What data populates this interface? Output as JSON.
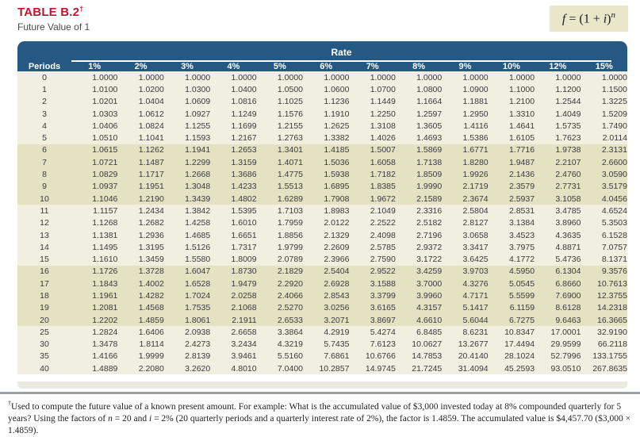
{
  "page": {
    "title": "TABLE B.2",
    "title_dagger": "†",
    "subtitle": "Future Value of 1",
    "formula": {
      "f": "f",
      "eq": " = (1 + ",
      "i": "i",
      "close": ")",
      "exp": "n"
    }
  },
  "colors": {
    "title_red": "#c2132e",
    "header_blue": "#255883",
    "band_light": "#f1efdf",
    "band_dark": "#e5e2c4",
    "formula_bg": "#e9e6c9"
  },
  "table": {
    "rate_label": "Rate",
    "periods_label": "Periods",
    "rate_columns": [
      "1%",
      "2%",
      "3%",
      "4%",
      "5%",
      "6%",
      "7%",
      "8%",
      "9%",
      "10%",
      "12%",
      "15%"
    ],
    "rows": [
      {
        "period": "0",
        "values": [
          "1.0000",
          "1.0000",
          "1.0000",
          "1.0000",
          "1.0000",
          "1.0000",
          "1.0000",
          "1.0000",
          "1.0000",
          "1.0000",
          "1.0000",
          "1.0000"
        ]
      },
      {
        "period": "1",
        "values": [
          "1.0100",
          "1.0200",
          "1.0300",
          "1.0400",
          "1.0500",
          "1.0600",
          "1.0700",
          "1.0800",
          "1.0900",
          "1.1000",
          "1.1200",
          "1.1500"
        ]
      },
      {
        "period": "2",
        "values": [
          "1.0201",
          "1.0404",
          "1.0609",
          "1.0816",
          "1.1025",
          "1.1236",
          "1.1449",
          "1.1664",
          "1.1881",
          "1.2100",
          "1.2544",
          "1.3225"
        ]
      },
      {
        "period": "3",
        "values": [
          "1.0303",
          "1.0612",
          "1.0927",
          "1.1249",
          "1.1576",
          "1.1910",
          "1.2250",
          "1.2597",
          "1.2950",
          "1.3310",
          "1.4049",
          "1.5209"
        ]
      },
      {
        "period": "4",
        "values": [
          "1.0406",
          "1.0824",
          "1.1255",
          "1.1699",
          "1.2155",
          "1.2625",
          "1.3108",
          "1.3605",
          "1.4116",
          "1.4641",
          "1.5735",
          "1.7490"
        ]
      },
      {
        "period": "5",
        "values": [
          "1.0510",
          "1.1041",
          "1.1593",
          "1.2167",
          "1.2763",
          "1.3382",
          "1.4026",
          "1.4693",
          "1.5386",
          "1.6105",
          "1.7623",
          "2.0114"
        ]
      },
      {
        "period": "6",
        "values": [
          "1.0615",
          "1.1262",
          "1.1941",
          "1.2653",
          "1.3401",
          "1.4185",
          "1.5007",
          "1.5869",
          "1.6771",
          "1.7716",
          "1.9738",
          "2.3131"
        ]
      },
      {
        "period": "7",
        "values": [
          "1.0721",
          "1.1487",
          "1.2299",
          "1.3159",
          "1.4071",
          "1.5036",
          "1.6058",
          "1.7138",
          "1.8280",
          "1.9487",
          "2.2107",
          "2.6600"
        ]
      },
      {
        "period": "8",
        "values": [
          "1.0829",
          "1.1717",
          "1.2668",
          "1.3686",
          "1.4775",
          "1.5938",
          "1.7182",
          "1.8509",
          "1.9926",
          "2.1436",
          "2.4760",
          "3.0590"
        ]
      },
      {
        "period": "9",
        "values": [
          "1.0937",
          "1.1951",
          "1.3048",
          "1.4233",
          "1.5513",
          "1.6895",
          "1.8385",
          "1.9990",
          "2.1719",
          "2.3579",
          "2.7731",
          "3.5179"
        ]
      },
      {
        "period": "10",
        "values": [
          "1.1046",
          "1.2190",
          "1.3439",
          "1.4802",
          "1.6289",
          "1.7908",
          "1.9672",
          "2.1589",
          "2.3674",
          "2.5937",
          "3.1058",
          "4.0456"
        ]
      },
      {
        "period": "11",
        "values": [
          "1.1157",
          "1.2434",
          "1.3842",
          "1.5395",
          "1.7103",
          "1.8983",
          "2.1049",
          "2.3316",
          "2.5804",
          "2.8531",
          "3.4785",
          "4.6524"
        ]
      },
      {
        "period": "12",
        "values": [
          "1.1268",
          "1.2682",
          "1.4258",
          "1.6010",
          "1.7959",
          "2.0122",
          "2.2522",
          "2.5182",
          "2.8127",
          "3.1384",
          "3.8960",
          "5.3503"
        ]
      },
      {
        "period": "13",
        "values": [
          "1.1381",
          "1.2936",
          "1.4685",
          "1.6651",
          "1.8856",
          "2.1329",
          "2.4098",
          "2.7196",
          "3.0658",
          "3.4523",
          "4.3635",
          "6.1528"
        ]
      },
      {
        "period": "14",
        "values": [
          "1.1495",
          "1.3195",
          "1.5126",
          "1.7317",
          "1.9799",
          "2.2609",
          "2.5785",
          "2.9372",
          "3.3417",
          "3.7975",
          "4.8871",
          "7.0757"
        ]
      },
      {
        "period": "15",
        "values": [
          "1.1610",
          "1.3459",
          "1.5580",
          "1.8009",
          "2.0789",
          "2.3966",
          "2.7590",
          "3.1722",
          "3.6425",
          "4.1772",
          "5.4736",
          "8.1371"
        ]
      },
      {
        "period": "16",
        "values": [
          "1.1726",
          "1.3728",
          "1.6047",
          "1.8730",
          "2.1829",
          "2.5404",
          "2.9522",
          "3.4259",
          "3.9703",
          "4.5950",
          "6.1304",
          "9.3576"
        ]
      },
      {
        "period": "17",
        "values": [
          "1.1843",
          "1.4002",
          "1.6528",
          "1.9479",
          "2.2920",
          "2.6928",
          "3.1588",
          "3.7000",
          "4.3276",
          "5.0545",
          "6.8660",
          "10.7613"
        ]
      },
      {
        "period": "18",
        "values": [
          "1.1961",
          "1.4282",
          "1.7024",
          "2.0258",
          "2.4066",
          "2.8543",
          "3.3799",
          "3.9960",
          "4.7171",
          "5.5599",
          "7.6900",
          "12.3755"
        ]
      },
      {
        "period": "19",
        "values": [
          "1.2081",
          "1.4568",
          "1.7535",
          "2.1068",
          "2.5270",
          "3.0256",
          "3.6165",
          "4.3157",
          "5.1417",
          "6.1159",
          "8.6128",
          "14.2318"
        ]
      },
      {
        "period": "20",
        "values": [
          "1.2202",
          "1.4859",
          "1.8061",
          "2.1911",
          "2.6533",
          "3.2071",
          "3.8697",
          "4.6610",
          "5.6044",
          "6.7275",
          "9.6463",
          "16.3665"
        ]
      },
      {
        "period": "25",
        "values": [
          "1.2824",
          "1.6406",
          "2.0938",
          "2.6658",
          "3.3864",
          "4.2919",
          "5.4274",
          "6.8485",
          "8.6231",
          "10.8347",
          "17.0001",
          "32.9190"
        ]
      },
      {
        "period": "30",
        "values": [
          "1.3478",
          "1.8114",
          "2.4273",
          "3.2434",
          "4.3219",
          "5.7435",
          "7.6123",
          "10.0627",
          "13.2677",
          "17.4494",
          "29.9599",
          "66.2118"
        ]
      },
      {
        "period": "35",
        "values": [
          "1.4166",
          "1.9999",
          "2.8139",
          "3.9461",
          "5.5160",
          "7.6861",
          "10.6766",
          "14.7853",
          "20.4140",
          "28.1024",
          "52.7996",
          "133.1755"
        ]
      },
      {
        "period": "40",
        "values": [
          "1.4889",
          "2.2080",
          "3.2620",
          "4.8010",
          "7.0400",
          "10.2857",
          "14.9745",
          "21.7245",
          "31.4094",
          "45.2593",
          "93.0510",
          "267.8635"
        ]
      }
    ]
  },
  "footnote": {
    "marker": "†",
    "seg1": "Used to compute the future value of a known present amount. For example: What is the accumulated value of $3,000 invested today at 8% compounded quarterly for 5 years? Using the factors of ",
    "n": "n",
    "seg2": " = 20 and ",
    "i": "i",
    "seg3": " = 2% (20 quarterly periods and a quarterly interest rate of 2%), the factor is 1.4859. The accumulated value is $4,457.70 ($3,000 × 1.4859)."
  }
}
